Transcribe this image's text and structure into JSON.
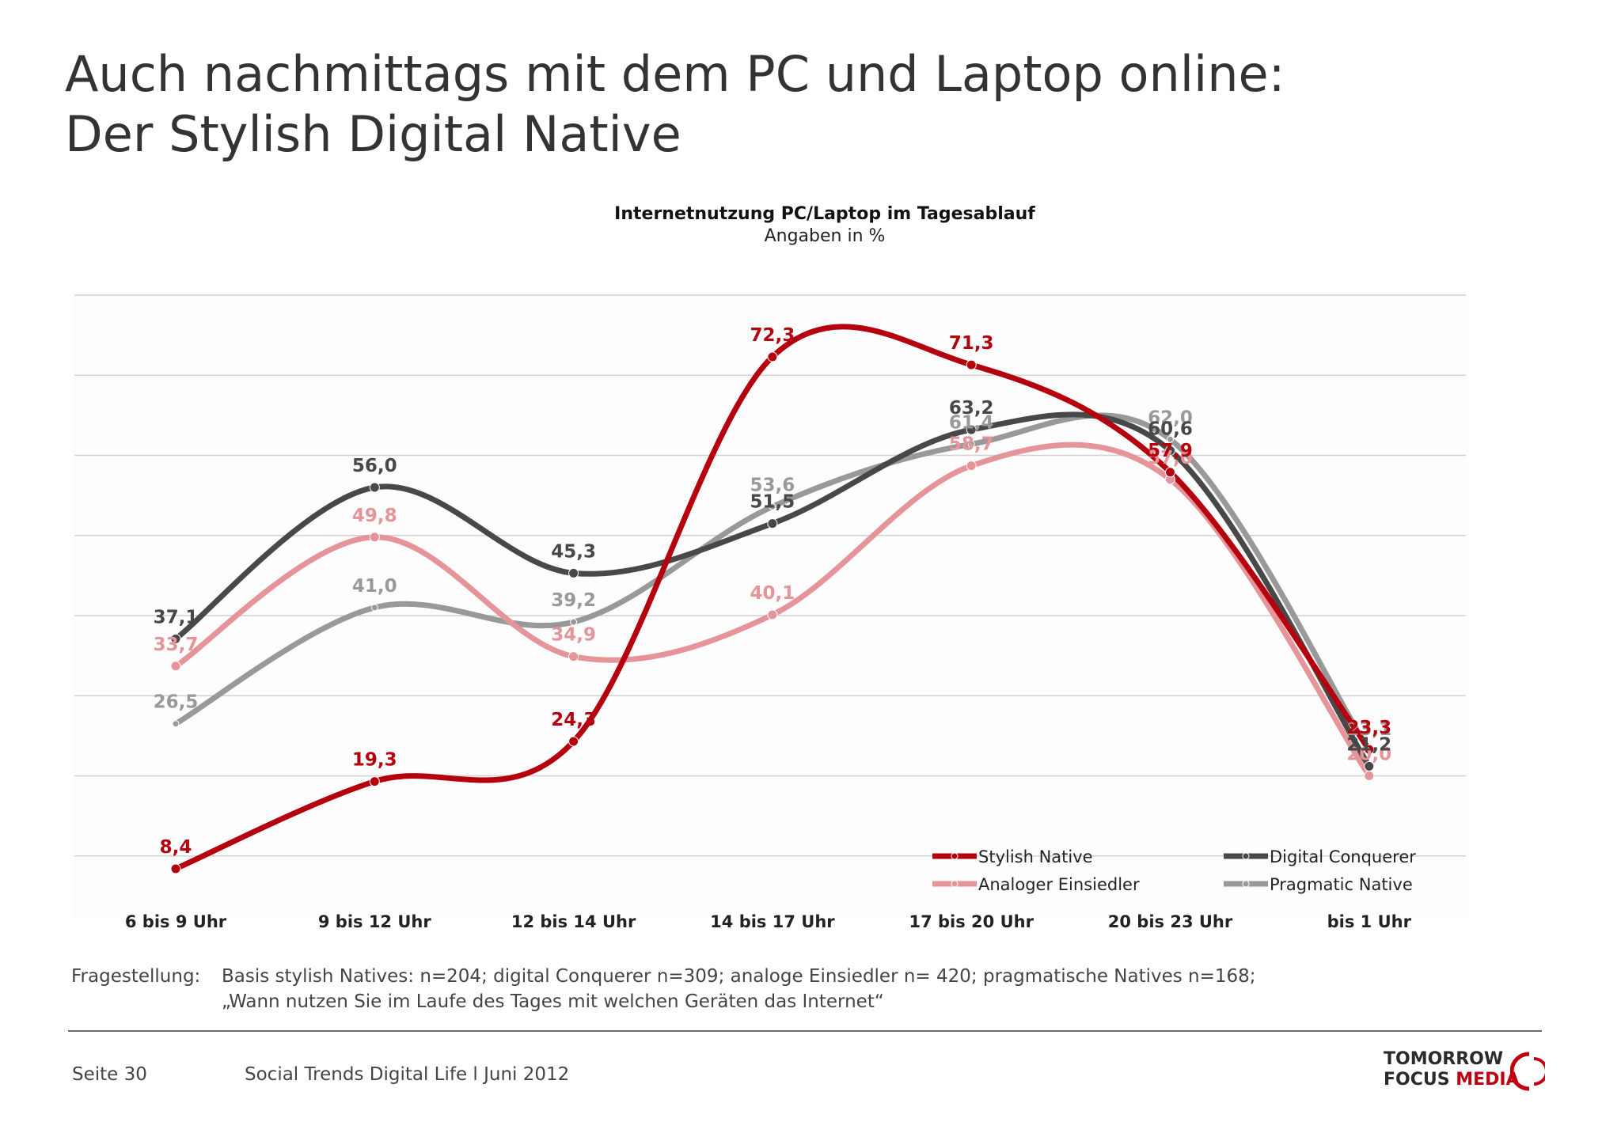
{
  "slide": {
    "title_line1": "Auch nachmittags mit dem PC und Laptop online:",
    "title_line2": "Der Stylish Digital Native"
  },
  "colors": {
    "stylish": "#b5000e",
    "analog": "#e59499",
    "digital": "#484848",
    "pragmatic": "#999999",
    "grid": "#d2d2d2",
    "background": "#fdfdfd"
  },
  "chart_data": {
    "type": "line",
    "title": "Internetnutzung PC/Laptop im Tagesablauf",
    "subtitle": "Angaben in %",
    "categories": [
      "6 bis 9 Uhr",
      "9 bis 12 Uhr",
      "12 bis 14 Uhr",
      "14 bis 17 Uhr",
      "17 bis 20 Uhr",
      "20 bis 23 Uhr",
      "bis 1 Uhr"
    ],
    "ylim": [
      0,
      80
    ],
    "grid": true,
    "smooth": true,
    "legend_position": "bottom-right",
    "series": [
      {
        "name": "Stylish Native",
        "color_key": "stylish",
        "values": [
          8.4,
          19.3,
          24.3,
          72.3,
          71.3,
          57.9,
          23.3
        ],
        "labels": [
          "8,4",
          "19,3",
          "24,3",
          "72,3",
          "71,3",
          "57,9",
          "23,3"
        ]
      },
      {
        "name": "Digital Conquerer",
        "color_key": "digital",
        "values": [
          37.1,
          56.0,
          45.3,
          51.5,
          63.2,
          60.6,
          21.2
        ],
        "labels": [
          "37,1",
          "56,0",
          "45,3",
          "51,5",
          "63,2",
          "60,6",
          "21,2"
        ]
      },
      {
        "name": "Analoger Einsiedler",
        "color_key": "analog",
        "values": [
          33.7,
          49.8,
          34.9,
          40.1,
          58.7,
          57.0,
          20.0
        ],
        "labels": [
          "33,7",
          "49,8",
          "34,9",
          "40,1",
          "58,7",
          "57,0",
          "20,0"
        ]
      },
      {
        "name": "Pragmatic Native",
        "color_key": "pragmatic",
        "values": [
          26.5,
          41.0,
          39.2,
          53.6,
          61.4,
          62.0,
          23.1
        ],
        "labels": [
          "26,5",
          "41,0",
          "39,2",
          "53,6",
          "61,4",
          "62,0",
          "23,1"
        ]
      }
    ]
  },
  "footnote": {
    "label": "Fragestellung:",
    "line1": "Basis stylish Natives: n=204; digital Conquerer n=309; analoge Einsiedler n= 420; pragmatische Natives n=168;",
    "line2": "„Wann nutzen Sie im Laufe des Tages mit welchen Geräten das Internet“"
  },
  "footer": {
    "page": "Seite 30",
    "publication": "Social Trends Digital Life l Juni 2012",
    "logo_line1": "TOMORROW",
    "logo_line2a": "FOCUS ",
    "logo_line2b": "MEDIA"
  }
}
